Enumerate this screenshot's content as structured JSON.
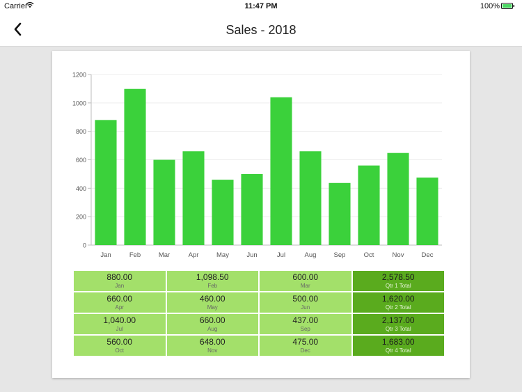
{
  "status_bar": {
    "carrier": "Carrier",
    "time": "11:47 PM",
    "battery": "100%"
  },
  "nav": {
    "title": "Sales - 2018",
    "back_icon": "chevron-left-icon"
  },
  "colors": {
    "bar": "#3bd13b",
    "cell": "#a3e06a",
    "total_cell": "#5aab1e"
  },
  "chart_data": {
    "type": "bar",
    "categories": [
      "Jan",
      "Feb",
      "Mar",
      "Apr",
      "May",
      "Jun",
      "Jul",
      "Aug",
      "Sep",
      "Oct",
      "Nov",
      "Dec"
    ],
    "values": [
      880,
      1098.5,
      600,
      660,
      460,
      500,
      1040,
      660,
      437,
      560,
      648,
      475
    ],
    "yticks": [
      0,
      200,
      400,
      600,
      800,
      1000,
      1200
    ],
    "ylim": [
      0,
      1200
    ],
    "grid": true,
    "legend": "none"
  },
  "table": {
    "rows": [
      {
        "cells": [
          {
            "value": "880.00",
            "label": "Jan"
          },
          {
            "value": "1,098.50",
            "label": "Feb"
          },
          {
            "value": "600.00",
            "label": "Mar"
          }
        ],
        "total": {
          "value": "2,578.50",
          "label": "Qtr 1 Total"
        }
      },
      {
        "cells": [
          {
            "value": "660.00",
            "label": "Apr"
          },
          {
            "value": "460.00",
            "label": "May"
          },
          {
            "value": "500.00",
            "label": "Jun"
          }
        ],
        "total": {
          "value": "1,620.00",
          "label": "Qtr 2 Total"
        }
      },
      {
        "cells": [
          {
            "value": "1,040.00",
            "label": "Jul"
          },
          {
            "value": "660.00",
            "label": "Aug"
          },
          {
            "value": "437.00",
            "label": "Sep"
          }
        ],
        "total": {
          "value": "2,137.00",
          "label": "Qtr 3 Total"
        }
      },
      {
        "cells": [
          {
            "value": "560.00",
            "label": "Oct"
          },
          {
            "value": "648.00",
            "label": "Nov"
          },
          {
            "value": "475.00",
            "label": "Dec"
          }
        ],
        "total": {
          "value": "1,683.00",
          "label": "Qtr 4 Total"
        }
      }
    ]
  }
}
